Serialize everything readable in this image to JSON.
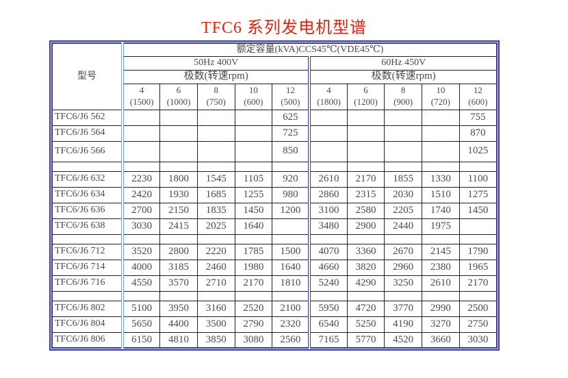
{
  "title": "TFC6 系列发电机型谱",
  "colors": {
    "outer_border": "#3434b8",
    "inner_border": "#1f1f1f",
    "section_divider": "#3434b8",
    "model_divider": "#56aeec",
    "title": "#f2200a",
    "text": "#4a4a4a"
  },
  "table": {
    "model_header": "型号",
    "capacity_header": "额定容量(kVA)CCS45℃(VDE45℃)",
    "sections": [
      {
        "id": "50hz",
        "label": "50Hz 400V",
        "poles_label": "极数(转速rpm)",
        "columns": [
          {
            "poles": "4",
            "rpm": "(1500)"
          },
          {
            "poles": "6",
            "rpm": "(1000)"
          },
          {
            "poles": "8",
            "rpm": "(750)"
          },
          {
            "poles": "10",
            "rpm": "(600)"
          },
          {
            "poles": "12",
            "rpm": "(500)"
          }
        ]
      },
      {
        "id": "60hz",
        "label": "60Hz 450V",
        "poles_label": "极数(转速rpm)",
        "columns": [
          {
            "poles": "4",
            "rpm": "(1800)"
          },
          {
            "poles": "6",
            "rpm": "(1200)"
          },
          {
            "poles": "8",
            "rpm": "(900)"
          },
          {
            "poles": "10",
            "rpm": "(720)"
          },
          {
            "poles": "12",
            "rpm": "(600)"
          }
        ]
      }
    ],
    "rows": [
      {
        "model": "TFC6/J6 562",
        "values": [
          "",
          "",
          "",
          "",
          "625",
          "",
          "",
          "",
          "",
          "755"
        ]
      },
      {
        "model": "TFC6/J6 564",
        "values": [
          "",
          "",
          "",
          "",
          "725",
          "",
          "",
          "",
          "",
          "870"
        ]
      },
      {
        "model": "TFC6/J6 566",
        "values": [
          "",
          "",
          "",
          "",
          "850",
          "",
          "",
          "",
          "",
          "1025"
        ],
        "tall": true
      },
      {
        "spacer": true
      },
      {
        "model": "TFC6/J6 632",
        "values": [
          "2230",
          "1800",
          "1545",
          "1105",
          "920",
          "2610",
          "2170",
          "1855",
          "1330",
          "1100"
        ]
      },
      {
        "model": "TFC6/J6 634",
        "values": [
          "2420",
          "1930",
          "1685",
          "1255",
          "980",
          "2860",
          "2315",
          "2030",
          "1510",
          "1275"
        ]
      },
      {
        "model": "TFC6/J6 636",
        "values": [
          "2700",
          "2150",
          "1835",
          "1450",
          "1200",
          "3100",
          "2580",
          "2205",
          "1740",
          "1450"
        ]
      },
      {
        "model": "TFC6/J6 638",
        "values": [
          "3030",
          "2415",
          "2025",
          "1640",
          "",
          "3480",
          "2900",
          "2440",
          "1975",
          ""
        ]
      },
      {
        "spacer": true
      },
      {
        "model": "TFC6/J6 712",
        "values": [
          "3520",
          "2800",
          "2220",
          "1785",
          "1500",
          "4070",
          "3360",
          "2670",
          "2145",
          "1790"
        ]
      },
      {
        "model": "TFC6/J6 714",
        "values": [
          "4000",
          "3185",
          "2460",
          "1980",
          "1640",
          "4660",
          "3820",
          "2960",
          "2380",
          "1965"
        ]
      },
      {
        "model": "TFC6/J6 716",
        "values": [
          "4550",
          "3570",
          "2710",
          "2170",
          "1810",
          "5240",
          "4290",
          "3250",
          "2610",
          "2170"
        ]
      },
      {
        "spacer": true
      },
      {
        "model": "TFC6/J6 802",
        "values": [
          "5100",
          "3950",
          "3160",
          "2520",
          "2100",
          "5950",
          "4720",
          "3770",
          "2990",
          "2500"
        ]
      },
      {
        "model": "TFC6/J6 804",
        "values": [
          "5650",
          "4400",
          "3500",
          "2790",
          "2320",
          "6540",
          "5250",
          "4190",
          "3270",
          "2750"
        ]
      },
      {
        "model": "TFC6/J6 806",
        "values": [
          "6150",
          "4810",
          "3850",
          "3080",
          "2560",
          "7165",
          "5770",
          "4520",
          "3660",
          "3030"
        ]
      }
    ]
  }
}
